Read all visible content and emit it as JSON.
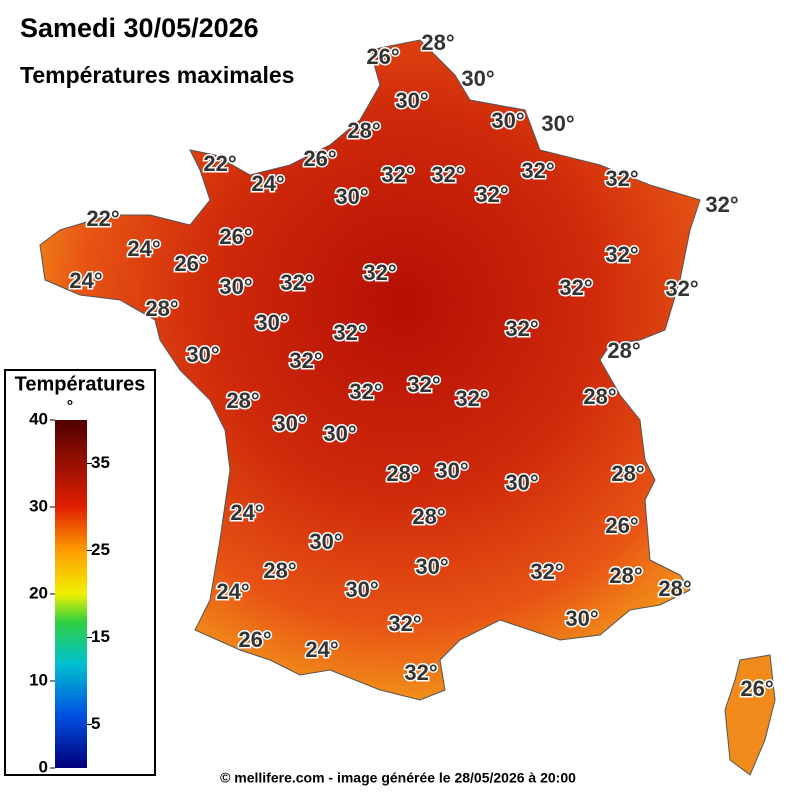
{
  "title": "Samedi 30/05/2026",
  "subtitle": "Températures maximales",
  "labels": [
    "26°",
    "28°",
    "30°",
    "30°",
    "30°",
    "30°",
    "28°",
    "26°",
    "22°",
    "24°",
    "32°",
    "32°",
    "32°",
    "32°",
    "32°",
    "30°",
    "32°",
    "22°",
    "24°",
    "26°",
    "26°",
    "32°",
    "24°",
    "30°",
    "32°",
    "32°",
    "32°",
    "32°",
    "28°",
    "30°",
    "32°",
    "32°",
    "30°",
    "32°",
    "28°",
    "32°",
    "32°",
    "32°",
    "28°",
    "28°",
    "30°",
    "30°",
    "28°",
    "30°",
    "30°",
    "28°",
    "24°",
    "28°",
    "26°",
    "30°",
    "28°",
    "30°",
    "32°",
    "28°",
    "28°",
    "24°",
    "30°",
    "30°",
    "32°",
    "26°",
    "24°",
    "32°",
    "26°"
  ],
  "colorbar": {
    "title": "Températures",
    "unit": "°",
    "range": [
      0,
      40
    ],
    "ticks": [
      0,
      5,
      10,
      15,
      20,
      25,
      30,
      35,
      40
    ]
  },
  "footer": "© mellifere.com - image générée le 28/05/2026 à 20:00"
}
